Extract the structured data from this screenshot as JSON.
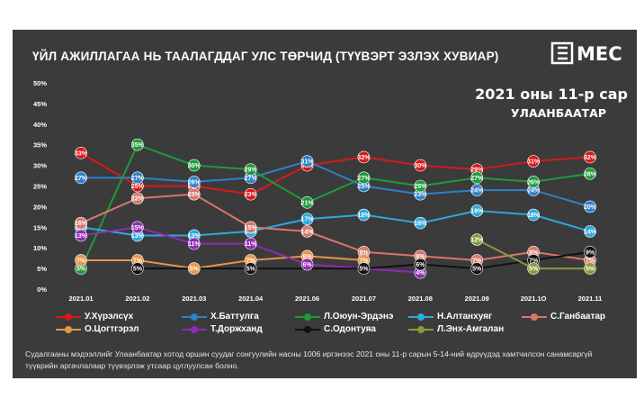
{
  "title": "ҮЙЛ АЖИЛЛАГАА НЬ ТААЛАГДДАГ УЛС ТӨРЧИД (ТҮҮВЭРТ ЭЗЛЭХ ХУВИАР)",
  "logo_text": "MEC",
  "subtitle_line1": "2021 оны 11-р сар",
  "subtitle_line2": "УЛААНБААТАР",
  "footer_text": "Судалгааны мэдээллийг Улаанбаатар хотод оршин суудаг сонгуулийн насны 1006 иргэнээс 2021 оны 11-р сарын 5-14-ний өдрүүдэд хамтчилсон санамсаргүй түүврийн аргачлалаар түүвэрлэж утсаар цуглуулсан болно.",
  "chart_data": {
    "type": "line",
    "title": "ҮЙЛ АЖИЛЛАГАА НЬ ТААЛАГДДАГ УЛС ТӨРЧИД (ТҮҮВЭРТ ЭЗЛЭХ ХУВИАР)",
    "xlabel": "",
    "ylabel": "",
    "ylim": [
      0,
      50
    ],
    "yticks": [
      "0%",
      "5%",
      "10%",
      "15%",
      "20%",
      "25%",
      "30%",
      "35%",
      "40%",
      "45%",
      "50%"
    ],
    "categories": [
      "2021.01",
      "2021.02",
      "2021.03",
      "2021.04",
      "2021.06",
      "2021.07",
      "2021.08",
      "2021.09",
      "2021.1O",
      "2021.11"
    ],
    "grid": false,
    "legend_position": "bottom",
    "series": [
      {
        "name": "У.Хүрэлсүх",
        "color": "#d7191c",
        "values": [
          33,
          25,
          25,
          23,
          30,
          32,
          30,
          29,
          31,
          32
        ]
      },
      {
        "name": "Х.Баттулга",
        "color": "#2f80c9",
        "values": [
          27,
          27,
          26,
          27,
          31,
          25,
          23,
          24,
          24,
          20
        ]
      },
      {
        "name": "Л.Оюун-Эрдэнэ",
        "color": "#1f9a3a",
        "values": [
          5,
          35,
          30,
          29,
          21,
          27,
          25,
          27,
          26,
          28
        ]
      },
      {
        "name": "Н.Алтанхуяг",
        "color": "#2ea8e0",
        "values": [
          15,
          13,
          13,
          14,
          17,
          18,
          16,
          19,
          18,
          14
        ]
      },
      {
        "name": "С.Ганбаатар",
        "color": "#d9776c",
        "values": [
          16,
          22,
          23,
          15,
          14,
          9,
          8,
          7,
          9,
          7
        ]
      },
      {
        "name": "О.Цогтгэрэл",
        "color": "#e8954a",
        "values": [
          7,
          7,
          5,
          7,
          8,
          7,
          null,
          null,
          null,
          null
        ]
      },
      {
        "name": "Т.Доржханд",
        "color": "#8e2bb5",
        "values": [
          13,
          15,
          11,
          11,
          6,
          null,
          4,
          null,
          null,
          null
        ]
      },
      {
        "name": "С.Одонтуяа",
        "color": "#111111",
        "values": [
          null,
          5,
          null,
          5,
          null,
          5,
          6,
          5,
          7,
          9
        ]
      },
      {
        "name": "Л.Энх-Амгалан",
        "color": "#8a9a3a",
        "values": [
          null,
          null,
          null,
          null,
          null,
          null,
          null,
          12,
          5,
          5
        ]
      }
    ],
    "data_labels": [
      [
        "33%",
        "25%",
        "25%",
        "23%",
        "30%",
        "32%",
        "30%",
        "29%",
        "31%",
        "32%"
      ],
      [
        "27%",
        "27%",
        "26%",
        "27%",
        "31%",
        "25%",
        "23%",
        "24%",
        "24%",
        "20%"
      ],
      [
        "5%",
        "35%",
        "30%",
        "29%",
        "21%",
        "27%",
        "25%",
        "27%",
        "26%",
        "28%"
      ],
      [
        "15%",
        "13%",
        "13%",
        "14%",
        "17%",
        "18%",
        "16%",
        "19%",
        "18%",
        "14%"
      ],
      [
        "16%",
        "22%",
        "23%",
        "15%",
        "14%",
        "9%",
        "8%",
        "7%",
        "9%",
        "7%"
      ],
      [
        "7%",
        "7%",
        "5%",
        "7%",
        "8%",
        "7%",
        null,
        null,
        null,
        null
      ],
      [
        "13%",
        "15%",
        "11%",
        "11%",
        "6%",
        null,
        "4%",
        null,
        null,
        null
      ],
      [
        null,
        "5%",
        null,
        "5%",
        null,
        "5%",
        "6%",
        "5%",
        "7%",
        "9%"
      ],
      [
        null,
        null,
        null,
        null,
        null,
        null,
        null,
        "12%",
        "5%",
        "5%"
      ]
    ]
  }
}
